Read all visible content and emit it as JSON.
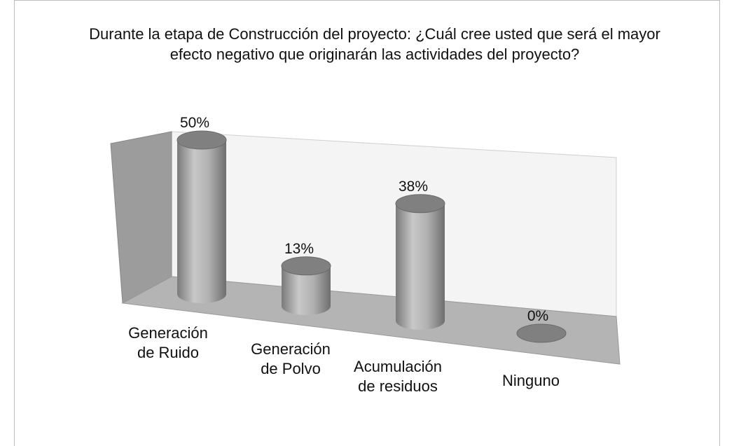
{
  "chart_data": {
    "type": "bar3d",
    "title": "Durante la etapa de Construcción del proyecto: ¿Cuál cree usted que será el mayor efecto negativo que originarán las actividades del proyecto?",
    "categories": [
      "Generación de Ruido",
      "Generación de Polvo",
      "Acumulación de residuos",
      "Ninguno"
    ],
    "values": [
      50,
      13,
      38,
      0
    ],
    "value_labels": [
      "50%",
      "13%",
      "38%",
      "0%"
    ],
    "color": "#9a9a9a"
  }
}
